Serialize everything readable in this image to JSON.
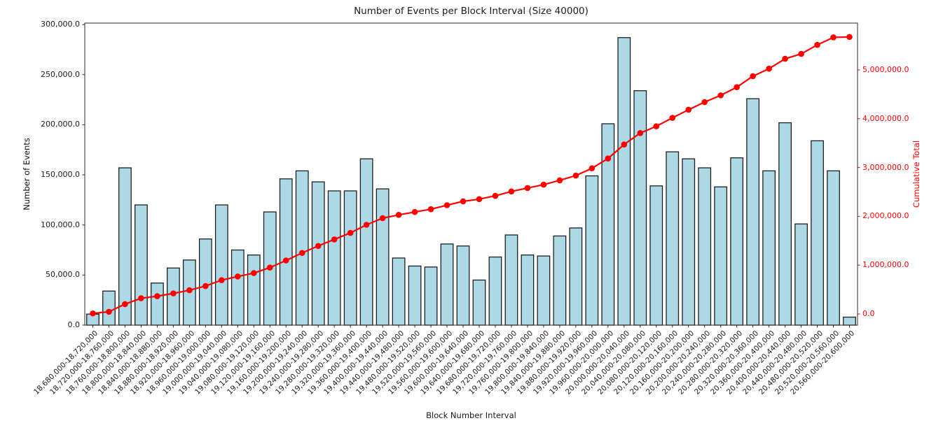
{
  "chart_data": {
    "type": "bar",
    "title": "Number of Events per Block Interval (Size 40000)",
    "xlabel": "Block Number Interval",
    "ylabel_left": "Number of Events",
    "ylabel_right": "Cumulative Total",
    "categories": [
      "18,680,000-18,720,000",
      "18,720,000-18,760,000",
      "18,760,000-18,800,000",
      "18,800,000-18,840,000",
      "18,840,000-18,880,000",
      "18,880,000-18,920,000",
      "18,920,000-18,960,000",
      "18,960,000-19,000,000",
      "19,000,000-19,040,000",
      "19,040,000-19,080,000",
      "19,080,000-19,120,000",
      "19,120,000-19,160,000",
      "19,160,000-19,200,000",
      "19,200,000-19,240,000",
      "19,240,000-19,280,000",
      "19,280,000-19,320,000",
      "19,320,000-19,360,000",
      "19,360,000-19,400,000",
      "19,400,000-19,440,000",
      "19,440,000-19,480,000",
      "19,480,000-19,520,000",
      "19,520,000-19,560,000",
      "19,560,000-19,600,000",
      "19,600,000-19,640,000",
      "19,640,000-19,680,000",
      "19,680,000-19,720,000",
      "19,720,000-19,760,000",
      "19,760,000-19,800,000",
      "19,800,000-19,840,000",
      "19,840,000-19,880,000",
      "19,880,000-19,920,000",
      "19,920,000-19,960,000",
      "19,960,000-20,000,000",
      "20,000,000-20,040,000",
      "20,040,000-20,080,000",
      "20,080,000-20,120,000",
      "20,120,000-20,160,000",
      "20,160,000-20,200,000",
      "20,200,000-20,240,000",
      "20,240,000-20,280,000",
      "20,280,000-20,320,000",
      "20,320,000-20,360,000",
      "20,360,000-20,400,000",
      "20,400,000-20,440,000",
      "20,440,000-20,480,000",
      "20,480,000-20,520,000",
      "20,520,000-20,560,000",
      "20,560,000-20,600,000"
    ],
    "series": [
      {
        "name": "Number of Events",
        "type": "bar",
        "values": [
          11000,
          34000,
          157000,
          120000,
          42000,
          57000,
          65000,
          86000,
          120000,
          75000,
          70000,
          113000,
          146000,
          154000,
          143000,
          134000,
          134000,
          166000,
          136000,
          67000,
          59000,
          58000,
          81000,
          79000,
          45000,
          68000,
          90000,
          70000,
          69000,
          89000,
          97000,
          149000,
          201000,
          287000,
          234000,
          139000,
          173000,
          166000,
          157000,
          138000,
          167000,
          226000,
          154000,
          202000,
          101000,
          184000,
          154000,
          8000
        ]
      },
      {
        "name": "Cumulative Total",
        "type": "line",
        "values": [
          11000,
          45000,
          202000,
          322000,
          364000,
          421000,
          486000,
          572000,
          692000,
          767000,
          837000,
          950000,
          1096000,
          1250000,
          1393000,
          1527000,
          1661000,
          1827000,
          1963000,
          2030000,
          2089000,
          2147000,
          2228000,
          2307000,
          2352000,
          2420000,
          2510000,
          2580000,
          2649000,
          2738000,
          2835000,
          2984000,
          3185000,
          3472000,
          3706000,
          3845000,
          4018000,
          4184000,
          4341000,
          4479000,
          4646000,
          4872000,
          5026000,
          5228000,
          5329000,
          5513000,
          5667000,
          5675000
        ]
      }
    ],
    "left_ylim": [
      0,
      301500
    ],
    "right_ylim": [
      -229000,
      5960000
    ],
    "left_ticks": {
      "values": [
        0,
        50000,
        100000,
        150000,
        200000,
        250000,
        300000
      ],
      "labels": [
        "0.0",
        "50,000.0",
        "100,000.0",
        "150,000.0",
        "200,000.0",
        "250,000.0",
        "300,000.0"
      ]
    },
    "right_ticks": {
      "values": [
        0,
        1000000,
        2000000,
        3000000,
        4000000,
        5000000
      ],
      "labels": [
        "0.0",
        "1,000,000.0",
        "2,000,000.0",
        "3,000,000.0",
        "4,000,000.0",
        "5,000,000.0"
      ]
    },
    "grid": false,
    "legend": "none",
    "colors": {
      "bar_fill": "#add8e6",
      "bar_edge": "#1f1f1f",
      "line": "#ff0000",
      "right_axis_text": "#ff0000",
      "axis_text": "#1a1a1a",
      "spine": "#2b2b2b"
    }
  }
}
